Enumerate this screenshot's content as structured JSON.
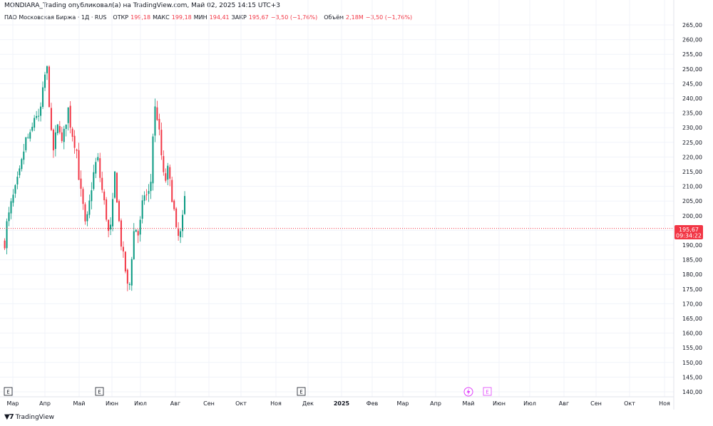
{
  "header": {
    "publisher": "MONDIARA_Trading опубликовал(а) на TradingView.com, Май 02, 2025 14:15 UTC+3"
  },
  "legend": {
    "symbol": "ПАО Московская Биржа · 1Д · RUS",
    "open_label": "ОТКР",
    "open_value": "199,18",
    "high_label": "МАКС",
    "high_value": "199,18",
    "low_label": "МИН",
    "low_value": "194,41",
    "close_label": "ЗАКР",
    "close_value": "195,67",
    "change": "−3,50 (−1,76%)",
    "volume_label": "Объём",
    "volume_value": "2,18M",
    "volume_change": "−3,50 (−1,76%)"
  },
  "price_tag": {
    "price": "195,67",
    "countdown": "09:34:22"
  },
  "footer": {
    "brand": "TradingView",
    "logo_icon": "tradingview-logo-icon"
  },
  "colors": {
    "up": "#089981",
    "down": "#f23645",
    "grid": "#f0f3fa",
    "text": "#131722",
    "event": "#e040fb"
  },
  "chart_data": {
    "type": "candlestick",
    "y_axis_labels": [
      "265,00",
      "260,00",
      "255,00",
      "250,00",
      "245,00",
      "240,00",
      "235,00",
      "230,00",
      "225,00",
      "220,00",
      "215,00",
      "210,00",
      "205,00",
      "200,00",
      "195,00",
      "190,00",
      "185,00",
      "180,00",
      "175,00",
      "170,00",
      "165,00",
      "160,00",
      "155,00",
      "150,00",
      "145,00",
      "140,00"
    ],
    "ylim": [
      137.5,
      266.5
    ],
    "x_axis_labels": [
      "Мар",
      "Апр",
      "Май",
      "Июн",
      "Июл",
      "Авг",
      "Сен",
      "Окт",
      "Ноя",
      "Дек",
      "2025",
      "Фев",
      "Мар",
      "Апр",
      "Май",
      "Июн",
      "Июл",
      "Авг",
      "Сен",
      "Окт",
      "Ноя"
    ],
    "last_price": 195.67,
    "event_markers": [
      "E",
      "E",
      "E",
      "E"
    ],
    "price_path": [
      [
        "2024-02-27",
        191
      ],
      [
        "2024-03-01",
        196
      ],
      [
        "2024-03-08",
        200
      ],
      [
        "2024-03-15",
        205
      ],
      [
        "2024-03-22",
        208
      ],
      [
        "2024-03-29",
        212
      ],
      [
        "2024-04-05",
        216
      ],
      [
        "2024-04-12",
        222
      ],
      [
        "2024-04-19",
        227
      ],
      [
        "2024-04-26",
        226
      ],
      [
        "2024-05-03",
        230
      ],
      [
        "2024-05-10",
        236
      ],
      [
        "2024-05-17",
        232
      ],
      [
        "2024-05-24",
        238
      ],
      [
        "2024-05-31",
        246
      ],
      [
        "2024-06-05",
        252
      ],
      [
        "2024-06-10",
        244
      ],
      [
        "2024-06-14",
        230
      ],
      [
        "2024-06-21",
        222
      ],
      [
        "2024-06-28",
        228
      ],
      [
        "2024-07-05",
        232
      ],
      [
        "2024-07-12",
        224
      ],
      [
        "2024-07-19",
        230
      ],
      [
        "2024-07-26",
        237
      ],
      [
        "2024-08-02",
        230
      ],
      [
        "2024-08-09",
        226
      ],
      [
        "2024-08-16",
        222
      ],
      [
        "2024-08-23",
        210
      ],
      [
        "2024-08-30",
        204
      ],
      [
        "2024-09-06",
        195
      ],
      [
        "2024-09-13",
        202
      ],
      [
        "2024-09-20",
        210
      ],
      [
        "2024-09-27",
        216
      ],
      [
        "2024-10-04",
        220
      ],
      [
        "2024-10-11",
        212
      ],
      [
        "2024-10-18",
        206
      ],
      [
        "2024-10-25",
        200
      ],
      [
        "2024-11-01",
        192
      ],
      [
        "2024-11-08",
        200
      ],
      [
        "2024-11-13",
        216
      ],
      [
        "2024-11-20",
        205
      ],
      [
        "2024-11-27",
        193
      ],
      [
        "2024-12-04",
        186
      ],
      [
        "2024-12-11",
        180
      ],
      [
        "2024-12-17",
        172
      ],
      [
        "2024-12-24",
        186
      ],
      [
        "2024-12-31",
        197
      ],
      [
        "2025-01-10",
        193
      ],
      [
        "2025-01-17",
        202
      ],
      [
        "2025-01-24",
        208
      ],
      [
        "2025-01-31",
        206
      ],
      [
        "2025-02-07",
        210
      ],
      [
        "2025-02-14",
        232
      ],
      [
        "2025-02-19",
        238
      ],
      [
        "2025-02-26",
        230
      ],
      [
        "2025-03-05",
        220
      ],
      [
        "2025-03-12",
        210
      ],
      [
        "2025-03-19",
        216
      ],
      [
        "2025-03-26",
        210
      ],
      [
        "2025-04-02",
        204
      ],
      [
        "2025-04-09",
        194
      ],
      [
        "2025-04-16",
        192
      ],
      [
        "2025-04-23",
        196
      ],
      [
        "2025-04-28",
        209
      ],
      [
        "2025-05-02",
        195.67
      ]
    ]
  }
}
